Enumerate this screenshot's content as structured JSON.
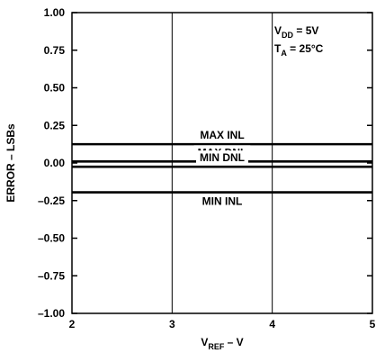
{
  "chart_data": {
    "type": "line",
    "xlabel": {
      "main": "V",
      "sub": "REF",
      "rest": " – V"
    },
    "ylabel": "ERROR – LSBs",
    "xlim": [
      2,
      5
    ],
    "ylim": [
      -1.0,
      1.0
    ],
    "x_ticks": [
      2,
      3,
      4,
      5
    ],
    "x_tick_labels": [
      "2",
      "3",
      "4",
      "5"
    ],
    "y_ticks": [
      1.0,
      0.75,
      0.5,
      0.25,
      0.0,
      -0.25,
      -0.5,
      -0.75,
      -1.0
    ],
    "y_tick_labels": [
      "1.00",
      "0.75",
      "0.50",
      "0.25",
      "0.00",
      "–0.25",
      "–0.50",
      "–0.75",
      "–1.00"
    ],
    "grid": "vertical",
    "annotations": [
      {
        "main": "V",
        "sub": "DD",
        "rest": " = 5V"
      },
      {
        "main": "T",
        "sub": "A",
        "rest": " = 25°C"
      }
    ],
    "series": [
      {
        "name": "MAX INL",
        "x": [
          2,
          5
        ],
        "values": [
          0.125,
          0.125
        ]
      },
      {
        "name": "MAX DNL",
        "x": [
          2,
          5
        ],
        "values": [
          0.01,
          0.01
        ]
      },
      {
        "name": "MIN DNL",
        "x": [
          2,
          5
        ],
        "values": [
          -0.025,
          -0.025
        ]
      },
      {
        "name": "MIN INL",
        "x": [
          2,
          5
        ],
        "values": [
          -0.195,
          -0.195
        ]
      }
    ]
  }
}
